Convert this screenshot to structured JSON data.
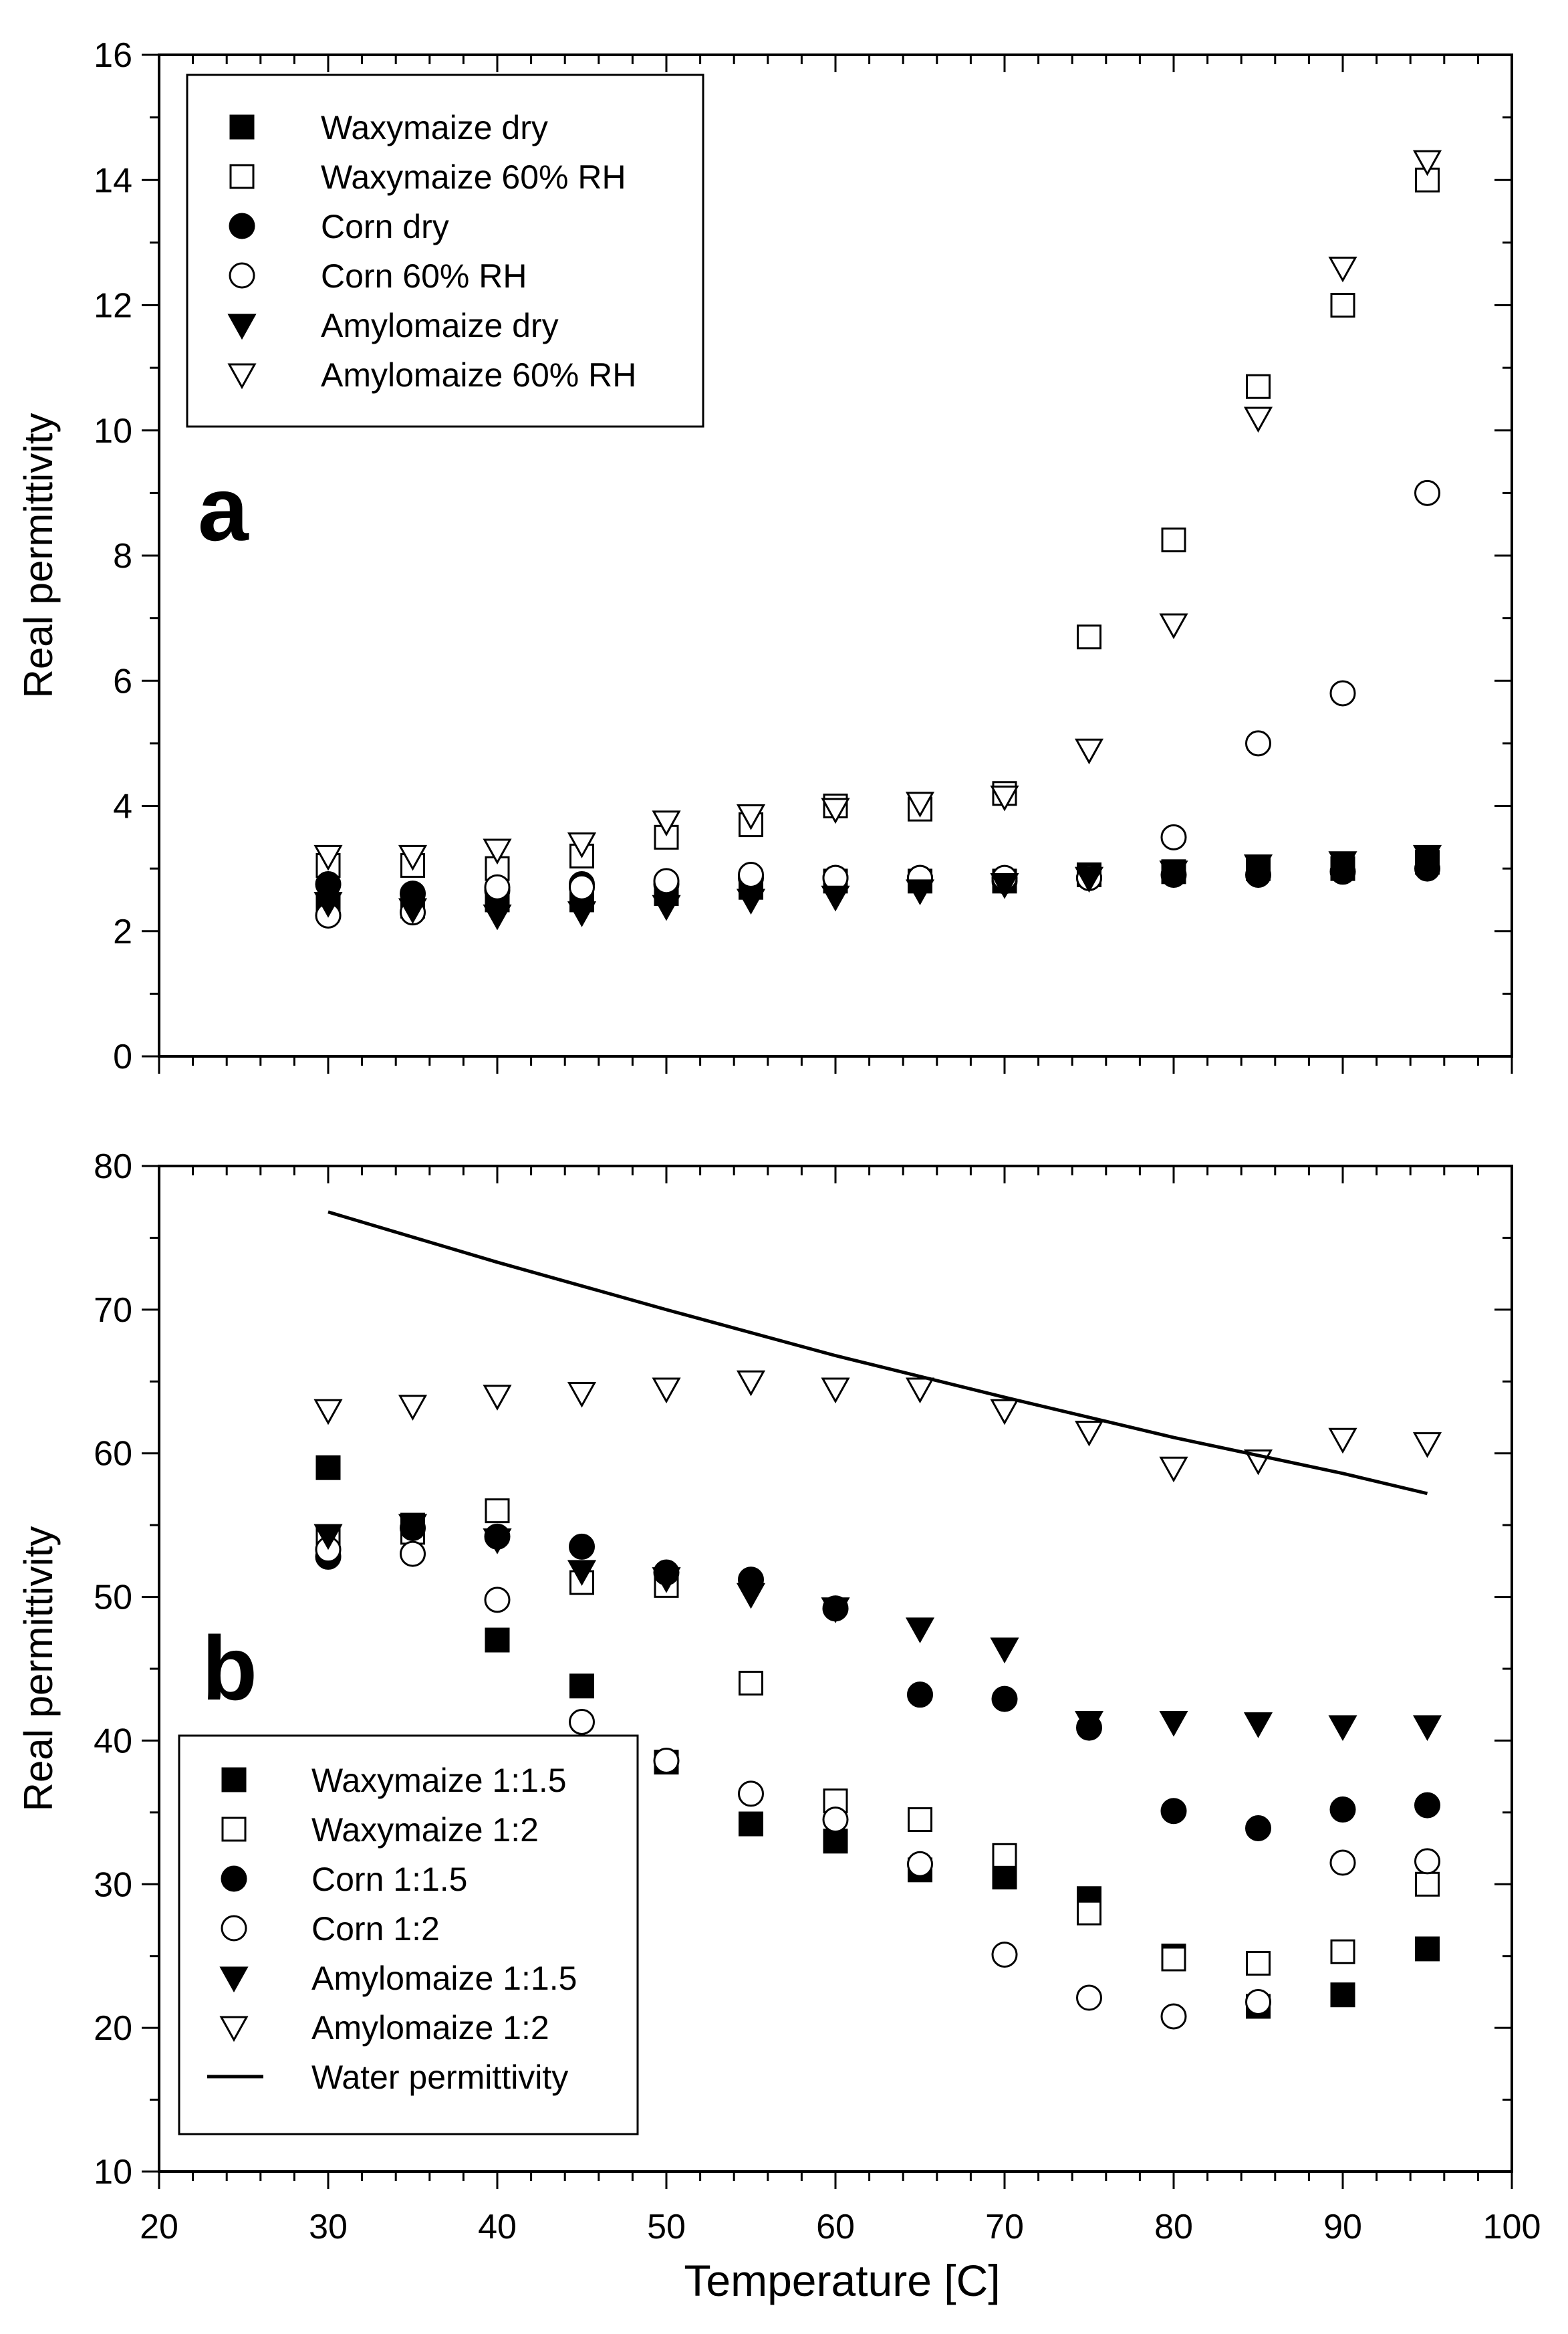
{
  "figure": {
    "xlabel": "Temperature [C]"
  },
  "chart_data": [
    {
      "type": "scatter",
      "panel_label": "a",
      "xlabel": "Temperature [C]",
      "ylabel": "Real permittivity",
      "xlim": [
        20,
        100
      ],
      "ylim": [
        0,
        16
      ],
      "x_ticks": [
        20,
        30,
        40,
        50,
        60,
        70,
        80,
        90,
        100
      ],
      "y_ticks": [
        0,
        2,
        4,
        6,
        8,
        10,
        12,
        14,
        16
      ],
      "x_tick_labels_shown": false,
      "grid": false,
      "legend_position": "top-left",
      "x": [
        30,
        35,
        40,
        45,
        50,
        55,
        60,
        65,
        70,
        75,
        80,
        85,
        90,
        95
      ],
      "series": [
        {
          "name": "Waxymaize dry",
          "marker": "square",
          "filled": true,
          "values": [
            2.4,
            2.4,
            2.5,
            2.5,
            2.6,
            2.7,
            2.8,
            2.8,
            2.8,
            2.9,
            2.95,
            3.0,
            3.0,
            3.1
          ]
        },
        {
          "name": "Waxymaize 60% RH",
          "marker": "square",
          "filled": false,
          "values": [
            3.05,
            3.05,
            3.0,
            3.2,
            3.5,
            3.7,
            4.0,
            3.95,
            4.2,
            6.7,
            8.25,
            10.7,
            12.0,
            14.0
          ]
        },
        {
          "name": "Corn dry",
          "marker": "circle",
          "filled": true,
          "values": [
            2.75,
            2.6,
            2.65,
            2.75,
            2.75,
            2.85,
            2.85,
            2.85,
            2.8,
            2.85,
            2.9,
            2.9,
            2.95,
            3.0
          ]
        },
        {
          "name": "Corn 60% RH",
          "marker": "circle",
          "filled": false,
          "values": [
            2.25,
            2.3,
            2.7,
            2.7,
            2.8,
            2.9,
            2.85,
            2.85,
            2.85,
            2.85,
            3.5,
            5.0,
            5.8,
            9.0
          ]
        },
        {
          "name": "Amylomaize dry",
          "marker": "triangle-down",
          "filled": true,
          "values": [
            2.45,
            2.35,
            2.25,
            2.3,
            2.4,
            2.5,
            2.55,
            2.65,
            2.75,
            2.85,
            2.95,
            3.05,
            3.1,
            3.2
          ]
        },
        {
          "name": "Amylomaize 60% RH",
          "marker": "triangle-down",
          "filled": false,
          "values": [
            3.2,
            3.2,
            3.3,
            3.4,
            3.75,
            3.85,
            3.95,
            4.05,
            4.15,
            4.9,
            6.9,
            10.2,
            12.6,
            14.3
          ]
        }
      ]
    },
    {
      "type": "scatter",
      "panel_label": "b",
      "xlabel": "Temperature [C]",
      "ylabel": "Real permittivity",
      "xlim": [
        20,
        100
      ],
      "ylim": [
        10,
        80
      ],
      "x_ticks": [
        20,
        30,
        40,
        50,
        60,
        70,
        80,
        90,
        100
      ],
      "y_ticks": [
        10,
        20,
        30,
        40,
        50,
        60,
        70,
        80
      ],
      "x_tick_labels_shown": true,
      "grid": false,
      "legend_position": "bottom-left",
      "x": [
        30,
        35,
        40,
        45,
        50,
        55,
        60,
        65,
        70,
        75,
        80,
        85,
        90,
        95
      ],
      "series": [
        {
          "name": "Waxymaize 1:1.5",
          "marker": "square",
          "filled": true,
          "values": [
            59.0,
            55.0,
            47.0,
            43.8,
            38.5,
            34.2,
            33.0,
            31.0,
            30.5,
            29.0,
            25.0,
            21.5,
            22.3,
            25.5
          ]
        },
        {
          "name": "Waxymaize 1:2",
          "marker": "square",
          "filled": false,
          "values": [
            54.0,
            54.5,
            56.0,
            51.0,
            50.8,
            44.0,
            35.8,
            34.5,
            32.0,
            28.0,
            24.8,
            24.5,
            25.3,
            30.0
          ]
        },
        {
          "name": "Corn 1:1.5",
          "marker": "circle",
          "filled": true,
          "values": [
            52.8,
            54.8,
            54.2,
            53.5,
            51.7,
            51.2,
            49.2,
            43.2,
            42.9,
            40.9,
            35.1,
            33.9,
            35.2,
            35.5
          ]
        },
        {
          "name": "Corn 1:2",
          "marker": "circle",
          "filled": false,
          "values": [
            53.3,
            53.0,
            49.8,
            41.3,
            38.6,
            36.3,
            34.5,
            31.4,
            25.1,
            22.1,
            20.8,
            21.8,
            31.5,
            31.6
          ]
        },
        {
          "name": "Amylomaize 1:1.5",
          "marker": "triangle-down",
          "filled": true,
          "values": [
            54.3,
            55.0,
            54.0,
            51.8,
            51.3,
            50.2,
            49.2,
            47.8,
            46.4,
            41.3,
            41.3,
            41.2,
            41.0,
            41.0
          ]
        },
        {
          "name": "Amylomaize 1:2",
          "marker": "triangle-down",
          "filled": false,
          "values": [
            63.0,
            63.3,
            64.0,
            64.2,
            64.5,
            65.0,
            64.5,
            64.5,
            63.0,
            61.5,
            59.0,
            59.5,
            61.0,
            60.7
          ]
        },
        {
          "name": "Water permittivity",
          "marker": "line",
          "filled": true,
          "line_x": [
            30,
            40,
            50,
            60,
            70,
            80,
            90,
            95
          ],
          "line_y": [
            76.8,
            73.3,
            70.0,
            66.8,
            63.9,
            61.1,
            58.6,
            57.2
          ]
        }
      ]
    }
  ]
}
